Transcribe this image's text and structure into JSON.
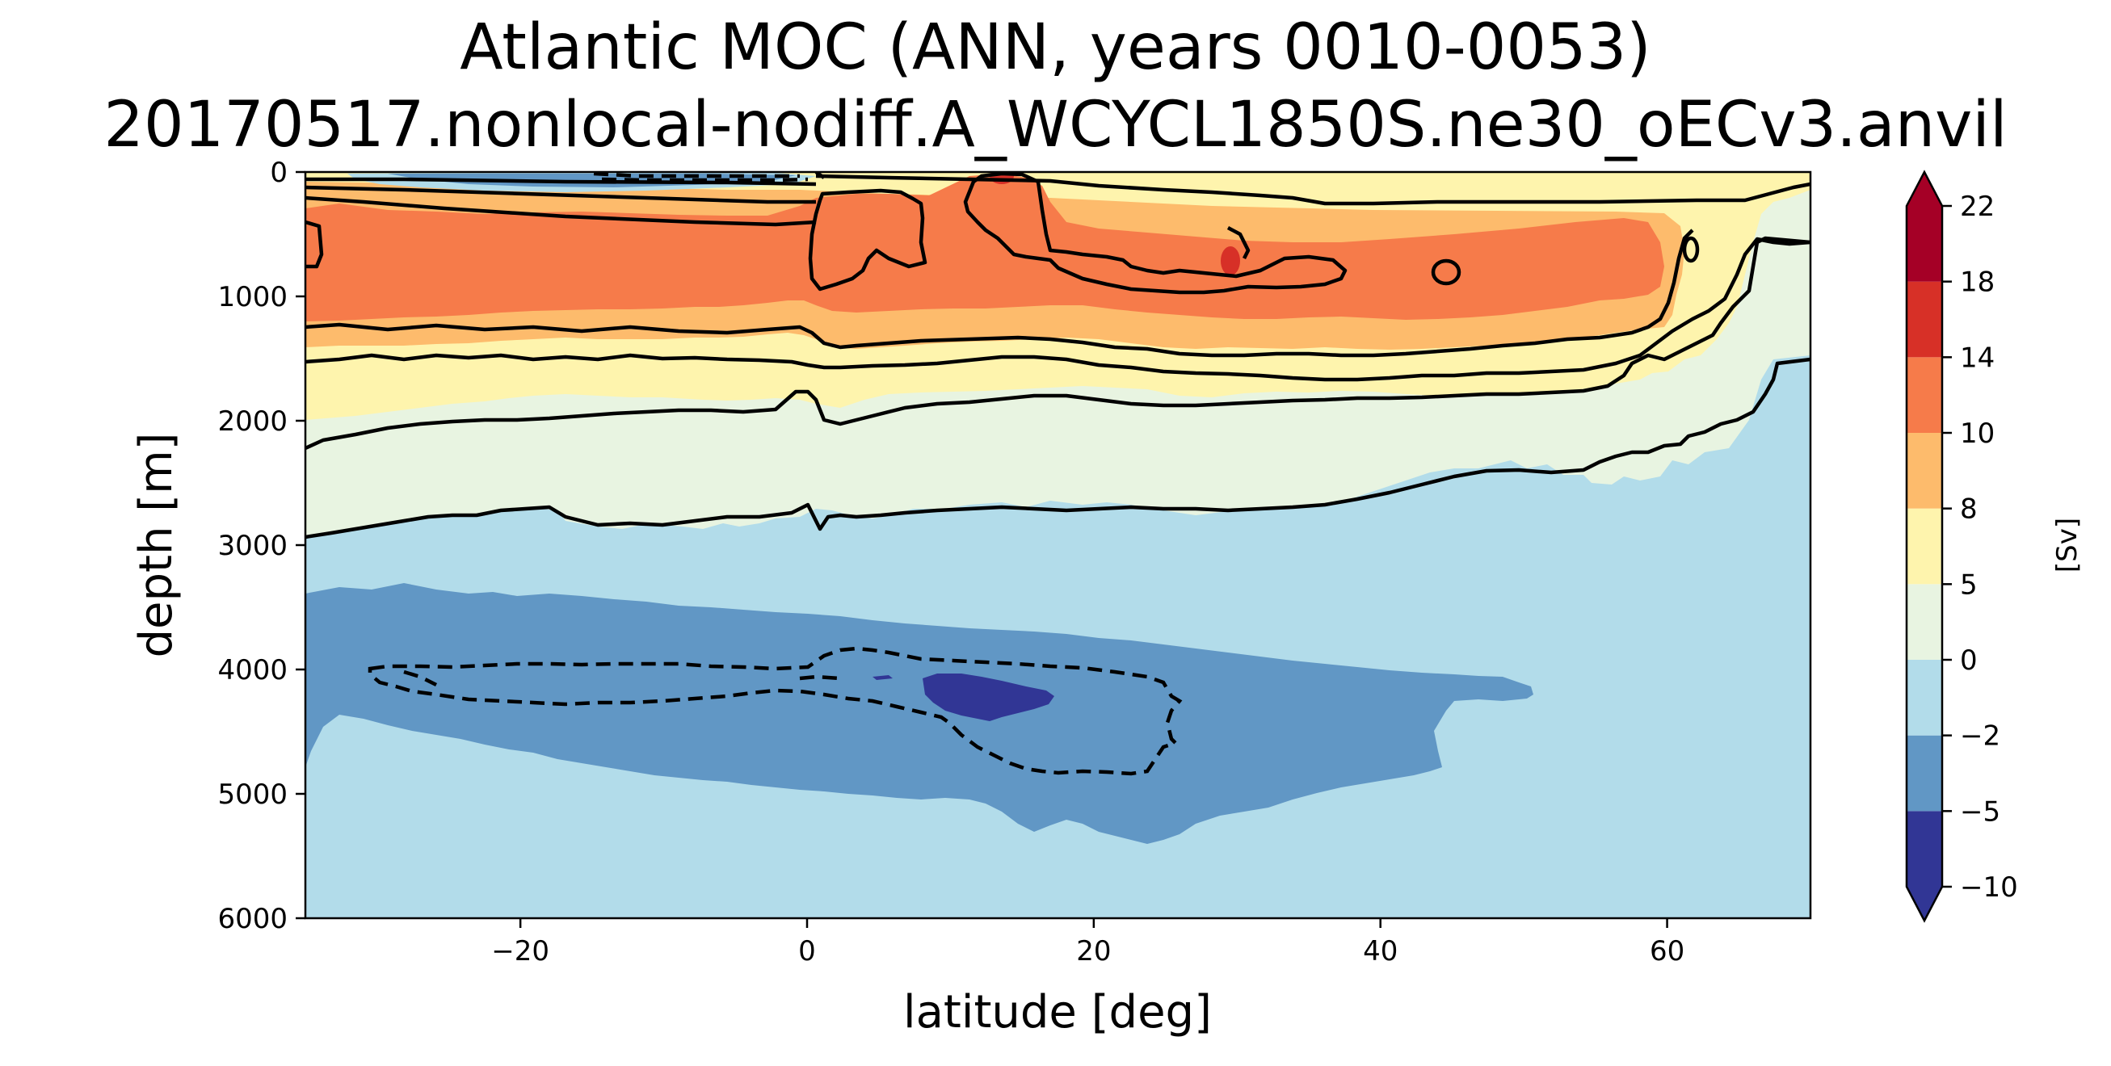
{
  "chart_data": {
    "type": "contour",
    "title_line1": "Atlantic MOC (ANN, years 0010-0053)",
    "title_line2": "20170517.nonlocal-nodiff.A_WCYCL1850S.ne30_oECv3.anvil",
    "xlabel": "latitude [deg]",
    "ylabel": "depth [m]",
    "xlim": [
      -35,
      70
    ],
    "ylim": [
      6000,
      0
    ],
    "xticks": [
      -20,
      0,
      20,
      40,
      60
    ],
    "xtick_labels": [
      "−20",
      "0",
      "20",
      "40",
      "60"
    ],
    "yticks": [
      0,
      1000,
      2000,
      3000,
      4000,
      5000,
      6000
    ],
    "ytick_labels": [
      "0",
      "1000",
      "2000",
      "3000",
      "4000",
      "5000",
      "6000"
    ],
    "colorbar": {
      "label": "[Sv]",
      "levels": [
        -10,
        -5,
        -2,
        0,
        5,
        8,
        10,
        14,
        18,
        22
      ],
      "tick_labels": [
        "−10",
        "−5",
        "−2",
        "0",
        "5",
        "8",
        "10",
        "14",
        "18",
        "22"
      ],
      "colors": [
        "#313695",
        "#6197c5",
        "#b2dcea",
        "#e8f4e1",
        "#fef4ad",
        "#fdbb6c",
        "#f67b4a",
        "#d73027",
        "#a50026"
      ],
      "extend": "both"
    },
    "contour_lines": {
      "positive_style": "solid black",
      "negative_style": "dashed black"
    },
    "features": [
      {
        "name": "upper overturning cell",
        "max_value_approx": 16,
        "depth_range_m": [
          200,
          1500
        ],
        "lat_range": [
          -35,
          60
        ]
      },
      {
        "name": "abyssal cell",
        "min_value_approx": -6,
        "depth_range_m": [
          3500,
          5400
        ],
        "lat_range": [
          -35,
          51
        ]
      },
      {
        "name": "shallow negative tropical cell",
        "depth_range_m": [
          0,
          100
        ],
        "lat_range": [
          -30,
          2
        ]
      }
    ]
  }
}
